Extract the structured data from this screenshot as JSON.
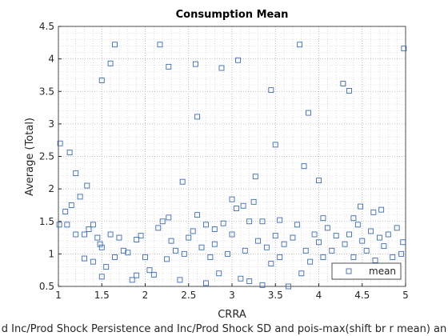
{
  "chart_data": {
    "type": "scatter",
    "title": "Consumption Mean",
    "xlabel": "CRRA",
    "ylabel": "Average (Total)",
    "caption": "d Inc/Prod Shock Persistence and Inc/Prod Shock SD and pois-max(shift br r mean) an",
    "xlim": [
      1,
      5
    ],
    "ylim": [
      0.5,
      4.5
    ],
    "xticks": [
      1,
      1.5,
      2,
      2.5,
      3,
      3.5,
      4,
      4.5,
      5
    ],
    "yticks": [
      0.5,
      1,
      1.5,
      2,
      2.5,
      3,
      3.5,
      4,
      4.5
    ],
    "grid": true,
    "minor_grid": true,
    "legend": "bottom-right",
    "series": [
      {
        "name": "mean",
        "color": "#3d6cb0",
        "x": [
          1.02,
          1.13,
          1.2,
          1.33,
          1.25,
          1.15,
          1.08,
          1.01,
          1.5,
          1.6,
          1.65,
          2.17,
          2.27,
          2.58,
          2.6,
          2.88,
          3.07,
          3.45,
          3.5,
          3.78,
          3.83,
          3.88,
          4.0,
          4.28,
          4.35,
          4.98,
          2.43,
          3.27,
          3.0,
          3.25,
          3.13,
          3.05,
          4.48,
          4.72,
          4.63,
          4.4,
          2.27,
          2.6,
          2.2,
          2.7,
          2.9,
          3.35,
          3.55,
          1.4,
          1.35,
          1.3,
          1.45,
          1.48,
          1.5,
          1.6,
          1.7,
          1.75,
          1.8,
          1.9,
          1.95,
          2.0,
          2.05,
          1.65,
          1.55,
          1.5,
          1.3,
          1.4,
          1.85,
          1.9,
          2.1,
          2.25,
          2.3,
          2.35,
          2.4,
          2.45,
          2.5,
          2.55,
          2.65,
          2.7,
          2.75,
          2.8,
          2.85,
          2.95,
          3.0,
          3.1,
          3.15,
          3.2,
          3.3,
          3.35,
          3.4,
          3.45,
          3.5,
          3.55,
          3.6,
          3.65,
          3.7,
          3.8,
          3.85,
          3.9,
          3.95,
          4.0,
          4.05,
          4.1,
          4.15,
          4.2,
          4.25,
          4.3,
          4.35,
          4.4,
          4.45,
          4.5,
          4.55,
          4.6,
          4.65,
          4.7,
          4.75,
          4.8,
          4.85,
          4.9,
          4.97,
          4.95,
          2.15,
          2.8,
          3.2,
          3.75,
          4.05,
          1.2,
          1.1
        ],
        "values": [
          2.7,
          2.56,
          2.24,
          2.05,
          1.88,
          1.75,
          1.65,
          1.45,
          3.67,
          3.93,
          4.22,
          4.22,
          3.88,
          3.92,
          3.11,
          3.86,
          3.98,
          3.52,
          2.68,
          4.22,
          2.35,
          3.17,
          2.13,
          3.62,
          3.51,
          4.16,
          2.11,
          2.19,
          1.84,
          1.8,
          1.74,
          1.7,
          1.73,
          1.68,
          1.64,
          1.55,
          1.56,
          1.6,
          1.5,
          1.45,
          1.47,
          1.5,
          1.52,
          1.45,
          1.38,
          1.3,
          1.25,
          1.15,
          1.1,
          1.3,
          1.25,
          1.05,
          1.02,
          1.22,
          1.28,
          0.95,
          0.75,
          0.95,
          0.8,
          0.65,
          0.93,
          0.88,
          0.6,
          0.67,
          0.68,
          0.92,
          1.2,
          1.05,
          0.6,
          1.0,
          1.25,
          1.35,
          1.1,
          0.55,
          0.95,
          1.15,
          0.7,
          1.0,
          1.3,
          0.62,
          1.05,
          0.58,
          1.2,
          0.52,
          1.1,
          0.85,
          1.28,
          0.95,
          1.15,
          0.5,
          1.25,
          0.7,
          1.05,
          0.88,
          1.3,
          1.18,
          0.95,
          1.4,
          1.05,
          1.28,
          0.8,
          1.15,
          1.3,
          0.95,
          1.45,
          1.2,
          1.05,
          1.35,
          0.9,
          1.25,
          1.12,
          1.3,
          0.95,
          1.4,
          1.18,
          1.0,
          1.4,
          1.38,
          1.5,
          1.45,
          1.55,
          1.3,
          1.45
        ]
      }
    ]
  }
}
